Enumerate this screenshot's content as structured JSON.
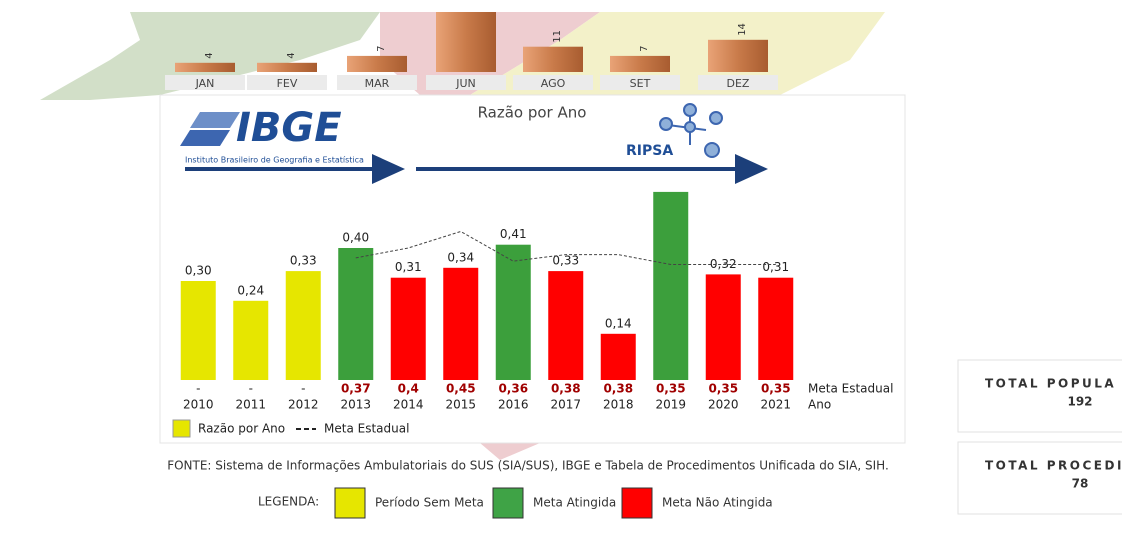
{
  "chart_data": [
    {
      "type": "bar",
      "categories": [
        "JAN",
        "FEV",
        "MAR",
        "JUN",
        "AGO",
        "SET",
        "DEZ"
      ],
      "values": [
        4,
        4,
        7,
        30,
        11,
        7,
        14
      ],
      "value_labels": [
        "4",
        "4",
        "7",
        null,
        "11",
        "7",
        "14"
      ],
      "color": "#c97b4a",
      "ylim": [
        0,
        30
      ]
    },
    {
      "type": "bar",
      "title": "Razão por Ano",
      "categories": [
        "2010",
        "2011",
        "2012",
        "2013",
        "2014",
        "2015",
        "2016",
        "2017",
        "2018",
        "2019",
        "2020",
        "2021"
      ],
      "series": [
        {
          "name": "Razão por Ano",
          "color": "#e6e600",
          "values": [
            0.3,
            0.24,
            0.33,
            0.4,
            0.31,
            0.34,
            0.41,
            0.33,
            0.14,
            0.57,
            0.32,
            0.31
          ],
          "value_labels": [
            "0,30",
            "0,24",
            "0,33",
            "0,40",
            "0,31",
            "0,34",
            "0,41",
            "0,33",
            "0,14",
            null,
            "0,32",
            "0,31"
          ],
          "colors": [
            "#e6e600",
            "#e6e600",
            "#e6e600",
            "#3c9f3c",
            "#ff0000",
            "#ff0000",
            "#3c9f3c",
            "#ff0000",
            "#ff0000",
            "#3c9f3c",
            "#ff0000",
            "#ff0000"
          ]
        },
        {
          "name": "Meta Estadual",
          "type": "line",
          "color": "#444444",
          "values": [
            null,
            null,
            null,
            0.37,
            0.4,
            0.45,
            0.36,
            0.38,
            0.38,
            0.35,
            0.35,
            0.35
          ],
          "value_labels": [
            "-",
            "-",
            "-",
            "0,37",
            "0,4",
            "0,45",
            "0,36",
            "0,38",
            "0,38",
            "0,35",
            "0,35",
            "0,35"
          ]
        }
      ],
      "row_labels": [
        "Meta Estadual",
        "Ano"
      ],
      "ylim": [
        0,
        0.6
      ]
    }
  ],
  "logos": {
    "ibge": "IBGE",
    "ibge_sub": "Instituto Brasileiro de Geografia e Estatística",
    "ripsa": "RIPSA"
  },
  "source": "FONTE: Sistema de Informações Ambulatoriais do SUS (SIA/SUS), IBGE e Tabela de Procedimentos Unificada do SIA, SIH.",
  "legend": {
    "title": "LEGENDA:",
    "items": [
      {
        "label": "Período Sem Meta",
        "color": "#e6e600"
      },
      {
        "label": "Meta Atingida",
        "color": "#3fa346"
      },
      {
        "label": "Meta Não Atingida",
        "color": "#ff0000"
      }
    ]
  },
  "cards": [
    {
      "title": "TOTAL POPULA",
      "value": "192"
    },
    {
      "title": "TOTAL PROCEDI",
      "value": "78"
    }
  ]
}
